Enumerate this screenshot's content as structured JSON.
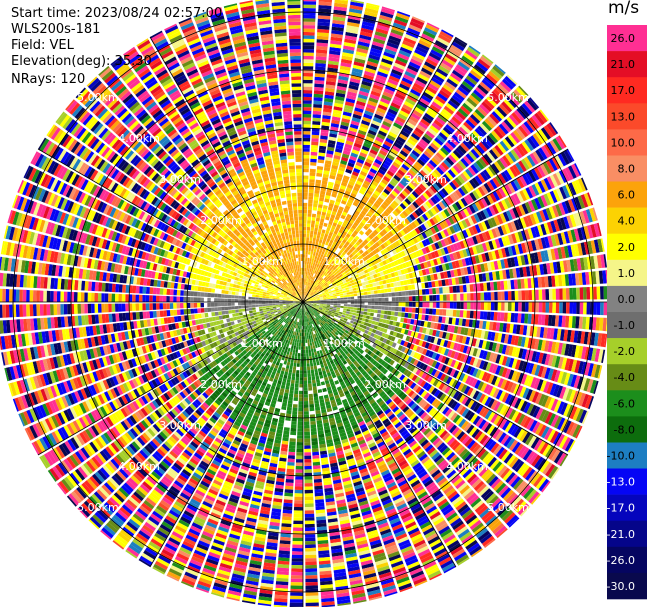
{
  "header": {
    "start_time": "Start time: 2023/08/24 02:57:00",
    "instrument": "WLS200s-181",
    "field": "Field: VEL",
    "elevation": "Elevation(deg): 35.30",
    "nrays": "NRays: 120"
  },
  "colorbar": {
    "unit": "m/s",
    "ticks": [
      "26.0",
      "21.0",
      "17.0",
      "13.0",
      "10.0",
      "8.0",
      "6.0",
      "4.0",
      "2.0",
      "1.0",
      "0.0",
      "-1.0",
      "-2.0",
      "-4.0",
      "-6.0",
      "-8.0",
      "-10.0",
      "-13.0",
      "-17.0",
      "-21.0",
      "-26.0",
      "-30.0"
    ],
    "colors": [
      "#ff2f93",
      "#e40e26",
      "#ff2a21",
      "#fb4a2a",
      "#fd6a48",
      "#f98e64",
      "#fca30b",
      "#fcd203",
      "#ffff00",
      "#f5f589",
      "#828282",
      "#6e6e6e",
      "#a6cf2a",
      "#678c16",
      "#1c8e1c",
      "#0d6d0d",
      "#1d7ec2",
      "#0505f5",
      "#0505bd",
      "#05058a",
      "#050560",
      "#09094d"
    ]
  },
  "chart_data": {
    "type": "heatmap",
    "projection": "polar PPI",
    "field": "VEL",
    "nrays": 120,
    "range_rings_km": [
      1,
      2,
      3,
      4,
      5
    ],
    "ring_labels": [
      "1.00km",
      "2.00km",
      "3.00km",
      "4.00km",
      "5.00km"
    ],
    "max_range_km": 5.6,
    "pattern": "Near field: positive velocities (yellow/orange, 1-6 m/s) in the northern half, negative velocities (green, -2 to -6 m/s) in the southern half, gray (~0 m/s) near the east-west axis; beyond about 1.5-2.5 km range the returns are noise spanning the full colour scale."
  }
}
